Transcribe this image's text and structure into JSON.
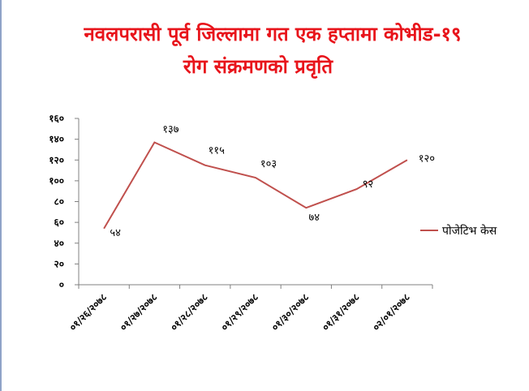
{
  "title_line1": "नवलपरासी पूर्व जिल्लामा गत एक हप्तामा कोभीड-१९",
  "title_line2": "रोग संक्रमणको प्रवृति",
  "colors": {
    "title": "#e8141b",
    "series_line": "#c0504d",
    "axis": "#808080"
  },
  "chart_data": {
    "type": "line",
    "title": "नवलपरासी पूर्व जिल्लामा गत एक हप्तामा कोभीड-१९ रोग संक्रमणको प्रवृति",
    "categories": [
      "०१/२६/२०७८",
      "०१/२७/२०७८",
      "०१/२८/२०७८",
      "०१/२९/२०७८",
      "०१/३०/२०७८",
      "०१/३१/२०७८",
      "०२/०१/२०७८"
    ],
    "series": [
      {
        "name": "पोजेटिभ केस",
        "values": [
          54,
          137,
          115,
          103,
          74,
          92,
          120
        ],
        "value_labels": [
          "५४",
          "१३७",
          "११५",
          "१०३",
          "७४",
          "९२",
          "१२०"
        ]
      }
    ],
    "ylim": [
      0,
      160
    ],
    "y_ticks": [
      0,
      20,
      40,
      60,
      80,
      100,
      120,
      140,
      160
    ],
    "y_tick_labels": [
      "०",
      "२०",
      "४०",
      "६०",
      "८०",
      "१००",
      "१२०",
      "१४०",
      "१६०"
    ],
    "grid": false,
    "legend_position": "right"
  }
}
